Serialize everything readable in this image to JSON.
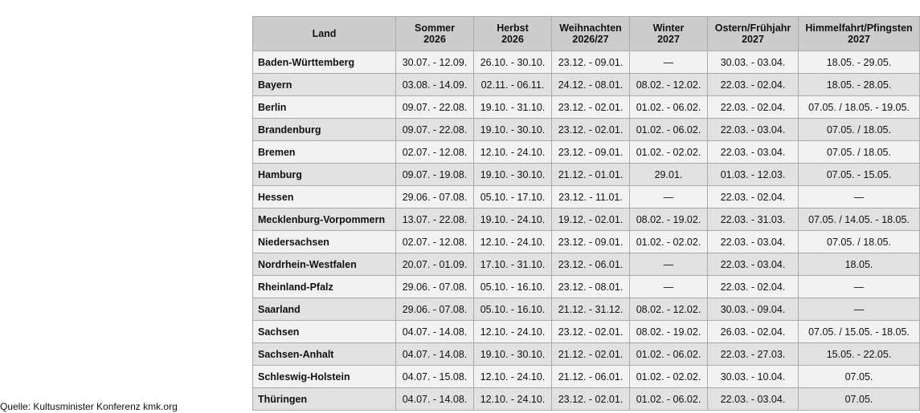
{
  "table": {
    "header": [
      [
        "Land"
      ],
      [
        "Sommer",
        "2026"
      ],
      [
        "Herbst",
        "2026"
      ],
      [
        "Weihnachten",
        "2026/27"
      ],
      [
        "Winter",
        "2027"
      ],
      [
        "Ostern/Frühjahr",
        "2027"
      ],
      [
        "Himmelfahrt/Pfingsten",
        "2027"
      ]
    ],
    "rows": [
      [
        "Baden-Württemberg",
        "30.07. - 12.09.",
        "26.10. - 30.10.",
        "23.12. - 09.01.",
        "—",
        "30.03. - 03.04.",
        "18.05. - 29.05."
      ],
      [
        "Bayern",
        "03.08. - 14.09.",
        "02.11. - 06.11.",
        "24.12. - 08.01.",
        "08.02. - 12.02.",
        "22.03. - 02.04.",
        "18.05. - 28.05."
      ],
      [
        "Berlin",
        "09.07. - 22.08.",
        "19.10. - 31.10.",
        "23.12. - 02.01.",
        "01.02. - 06.02.",
        "22.03. - 02.04.",
        "07.05. / 18.05. - 19.05."
      ],
      [
        "Brandenburg",
        "09.07. - 22.08.",
        "19.10. - 30.10.",
        "23.12. - 02.01.",
        "01.02. - 06.02.",
        "22.03. - 03.04.",
        "07.05. / 18.05."
      ],
      [
        "Bremen",
        "02.07. - 12.08.",
        "12.10. - 24.10.",
        "23.12. - 09.01.",
        "01.02. - 02.02.",
        "22.03. - 03.04.",
        "07.05. / 18.05."
      ],
      [
        "Hamburg",
        "09.07. - 19.08.",
        "19.10. - 30.10.",
        "21.12. - 01.01.",
        "29.01.",
        "01.03. - 12.03.",
        "07.05. - 15.05."
      ],
      [
        "Hessen",
        "29.06. - 07.08.",
        "05.10. - 17.10.",
        "23.12. - 11.01.",
        "—",
        "22.03. - 02.04.",
        "—"
      ],
      [
        "Mecklenburg-Vorpommern",
        "13.07. - 22.08.",
        "19.10. - 24.10.",
        "19.12. - 02.01.",
        "08.02. - 19.02.",
        "22.03. - 31.03.",
        "07.05. / 14.05. - 18.05."
      ],
      [
        "Niedersachsen",
        "02.07. - 12.08.",
        "12.10. - 24.10.",
        "23.12. - 09.01.",
        "01.02. - 02.02.",
        "22.03. - 03.04.",
        "07.05. / 18.05."
      ],
      [
        "Nordrhein-Westfalen",
        "20.07. - 01.09.",
        "17.10. - 31.10.",
        "23.12. - 06.01.",
        "—",
        "22.03. - 03.04.",
        "18.05."
      ],
      [
        "Rheinland-Pfalz",
        "29.06. - 07.08.",
        "05.10. - 16.10.",
        "23.12. - 08.01.",
        "—",
        "22.03. - 02.04.",
        "—"
      ],
      [
        "Saarland",
        "29.06. - 07.08.",
        "05.10. - 16.10.",
        "21.12. - 31.12.",
        "08.02. - 12.02.",
        "30.03. - 09.04.",
        "—"
      ],
      [
        "Sachsen",
        "04.07. - 14.08.",
        "12.10. - 24.10.",
        "23.12. - 02.01.",
        "08.02. - 19.02.",
        "26.03. - 02.04.",
        "07.05. / 15.05. - 18.05."
      ],
      [
        "Sachsen-Anhalt",
        "04.07. - 14.08.",
        "19.10. - 30.10.",
        "21.12. - 02.01.",
        "01.02. - 06.02.",
        "22.03. - 27.03.",
        "15.05. - 22.05."
      ],
      [
        "Schleswig-Holstein",
        "04.07. - 15.08.",
        "12.10. - 24.10.",
        "21.12. - 06.01.",
        "01.02. - 02.02.",
        "30.03. - 10.04.",
        "07.05."
      ],
      [
        "Thüringen",
        "04.07. - 14.08.",
        "12.10. - 24.10.",
        "23.12. - 02.01.",
        "01.02. - 06.02.",
        "22.03. - 03.04.",
        "07.05."
      ]
    ]
  },
  "source": "Quelle: Kultusminister Konferenz kmk.org"
}
